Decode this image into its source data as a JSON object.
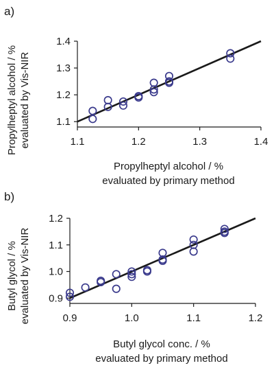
{
  "chart_data": [
    {
      "panel": "a)",
      "type": "scatter",
      "title": "",
      "xlabel": [
        "Propylheptyl alcohol / %",
        "evaluated by primary method"
      ],
      "ylabel": [
        "Propylheptyl alcohol / %",
        "evaluated by Vis-NIR"
      ],
      "xlim": [
        1.1,
        1.4
      ],
      "ylim": [
        1.08,
        1.4
      ],
      "xticks": [
        "1.1",
        "1.2",
        "1.3",
        "1.4"
      ],
      "yticks": [
        "1.1",
        "1.2",
        "1.3",
        "1.4"
      ],
      "xtick_values": [
        1.1,
        1.2,
        1.3,
        1.4
      ],
      "ytick_values": [
        1.1,
        1.2,
        1.3,
        1.4
      ],
      "grid": false,
      "marker_color": "#3a3a8c",
      "line_color": "#1a1a1a",
      "fit_line": {
        "x": [
          1.1,
          1.4
        ],
        "y": [
          1.1,
          1.4
        ]
      },
      "points": [
        {
          "x": 1.125,
          "y": 1.14
        },
        {
          "x": 1.125,
          "y": 1.11
        },
        {
          "x": 1.15,
          "y": 1.18
        },
        {
          "x": 1.15,
          "y": 1.155
        },
        {
          "x": 1.175,
          "y": 1.175
        },
        {
          "x": 1.175,
          "y": 1.16
        },
        {
          "x": 1.2,
          "y": 1.195
        },
        {
          "x": 1.2,
          "y": 1.19
        },
        {
          "x": 1.225,
          "y": 1.245
        },
        {
          "x": 1.225,
          "y": 1.22
        },
        {
          "x": 1.225,
          "y": 1.21
        },
        {
          "x": 1.25,
          "y": 1.27
        },
        {
          "x": 1.25,
          "y": 1.25
        },
        {
          "x": 1.25,
          "y": 1.245
        },
        {
          "x": 1.35,
          "y": 1.355
        },
        {
          "x": 1.35,
          "y": 1.335
        }
      ]
    },
    {
      "panel": "b)",
      "type": "scatter",
      "title": "",
      "xlabel": [
        "Butyl glycol conc. / %",
        "evaluated by primary method"
      ],
      "ylabel": [
        "Butyl glycol / %",
        "evaluated by Vis-NIR"
      ],
      "xlim": [
        0.9,
        1.2
      ],
      "ylim": [
        0.88,
        1.2
      ],
      "xticks": [
        "0.9",
        "1.0",
        "1.1",
        "1.2"
      ],
      "yticks": [
        "0.9",
        "1.0",
        "1.1",
        "1.2"
      ],
      "xtick_values": [
        0.9,
        1.0,
        1.1,
        1.2
      ],
      "ytick_values": [
        0.9,
        1.0,
        1.1,
        1.2
      ],
      "grid": false,
      "marker_color": "#3a3a8c",
      "line_color": "#1a1a1a",
      "fit_line": {
        "x": [
          0.9,
          1.2
        ],
        "y": [
          0.9,
          1.2
        ]
      },
      "points": [
        {
          "x": 0.9,
          "y": 0.92
        },
        {
          "x": 0.9,
          "y": 0.905
        },
        {
          "x": 0.925,
          "y": 0.94
        },
        {
          "x": 0.95,
          "y": 0.965
        },
        {
          "x": 0.95,
          "y": 0.96
        },
        {
          "x": 0.975,
          "y": 0.99
        },
        {
          "x": 0.975,
          "y": 0.935
        },
        {
          "x": 1.0,
          "y": 1.0
        },
        {
          "x": 1.0,
          "y": 0.99
        },
        {
          "x": 1.0,
          "y": 0.98
        },
        {
          "x": 1.025,
          "y": 1.005
        },
        {
          "x": 1.025,
          "y": 1.0
        },
        {
          "x": 1.05,
          "y": 1.07
        },
        {
          "x": 1.05,
          "y": 1.045
        },
        {
          "x": 1.05,
          "y": 1.04
        },
        {
          "x": 1.1,
          "y": 1.12
        },
        {
          "x": 1.1,
          "y": 1.1
        },
        {
          "x": 1.1,
          "y": 1.075
        },
        {
          "x": 1.15,
          "y": 1.16
        },
        {
          "x": 1.15,
          "y": 1.15
        },
        {
          "x": 1.15,
          "y": 1.145
        }
      ]
    }
  ]
}
